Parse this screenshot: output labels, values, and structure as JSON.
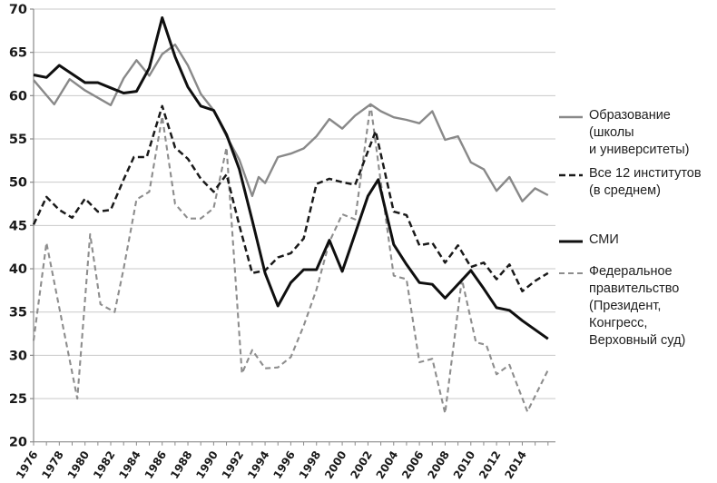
{
  "chart_data": {
    "type": "line",
    "title": "",
    "xlabel": "",
    "ylabel": "",
    "ylim": [
      20,
      70
    ],
    "xlim": [
      1976,
      2016.5
    ],
    "grid": true,
    "legend_position": "right",
    "y_tick_labels": [
      "20",
      "25",
      "30",
      "35",
      "40",
      "45",
      "50",
      "55",
      "60",
      "65",
      "70"
    ],
    "y_tick_values": [
      20,
      25,
      30,
      35,
      40,
      45,
      50,
      55,
      60,
      65,
      70
    ],
    "x_tick_labels": [
      "1976",
      "1978",
      "1980",
      "1982",
      "1984",
      "1986",
      "1988",
      "1990",
      "1992",
      "1994",
      "1996",
      "1998",
      "2000",
      "2002",
      "2004",
      "2006",
      "2008",
      "2010",
      "2012",
      "2014"
    ],
    "x_tick_values": [
      1976,
      1978,
      1980,
      1982,
      1984,
      1986,
      1988,
      1990,
      1992,
      1994,
      1996,
      1998,
      2000,
      2002,
      2004,
      2006,
      2008,
      2010,
      2012,
      2014
    ],
    "series": [
      {
        "name": "Федеральное правительство (Президент, Конгресс, Верховный суд)",
        "legend_lines": [
          "Федеральное",
          "правительство",
          "(Президент, Конгресс,",
          "Верховный суд)"
        ],
        "color": "#8d8d8d",
        "style": "dashed",
        "dash": "6,4",
        "width": 2.1,
        "points": [
          [
            1976,
            31.7
          ],
          [
            1977,
            43.0
          ],
          [
            1978,
            35.5
          ],
          [
            1979.4,
            25.0
          ],
          [
            1980.4,
            44.0
          ],
          [
            1981.2,
            35.9
          ],
          [
            1982.3,
            35.0
          ],
          [
            1983,
            40.0
          ],
          [
            1984,
            48.0
          ],
          [
            1985,
            48.9
          ],
          [
            1986,
            57.6
          ],
          [
            1987,
            47.5
          ],
          [
            1988,
            45.8
          ],
          [
            1989,
            45.8
          ],
          [
            1990,
            47.0
          ],
          [
            1991,
            54.0
          ],
          [
            1992.2,
            27.9
          ],
          [
            1993,
            30.6
          ],
          [
            1994,
            28.5
          ],
          [
            1995,
            28.6
          ],
          [
            1996,
            29.8
          ],
          [
            1997,
            33.4
          ],
          [
            1998,
            37.6
          ],
          [
            1999,
            43.1
          ],
          [
            2000,
            46.3
          ],
          [
            2001,
            45.7
          ],
          [
            2002.2,
            59.0
          ],
          [
            2003,
            50.0
          ],
          [
            2004,
            39.2
          ],
          [
            2005,
            38.8
          ],
          [
            2006,
            29.2
          ],
          [
            2007,
            29.6
          ],
          [
            2008,
            23.3
          ],
          [
            2009.3,
            38.8
          ],
          [
            2010.4,
            31.5
          ],
          [
            2011.2,
            31.2
          ],
          [
            2012,
            27.8
          ],
          [
            2013,
            28.9
          ],
          [
            2014.4,
            23.5
          ],
          [
            2016,
            28.3
          ]
        ]
      },
      {
        "name": "Образование (школы и университеты)",
        "legend_lines": [
          "Образование",
          "(школы",
          "и университеты)"
        ],
        "color": "#898989",
        "style": "solid",
        "dash": "",
        "width": 2.4,
        "points": [
          [
            1976,
            61.8
          ],
          [
            1977.6,
            59.0
          ],
          [
            1978.8,
            61.9
          ],
          [
            1980,
            60.6
          ],
          [
            1982,
            58.9
          ],
          [
            1983,
            62.0
          ],
          [
            1984,
            64.1
          ],
          [
            1985,
            62.3
          ],
          [
            1986,
            64.8
          ],
          [
            1987,
            65.9
          ],
          [
            1988,
            63.5
          ],
          [
            1989,
            60.2
          ],
          [
            1990,
            58.3
          ],
          [
            1991,
            55.3
          ],
          [
            1992,
            52.6
          ],
          [
            1993,
            48.4
          ],
          [
            1993.5,
            50.6
          ],
          [
            1994,
            49.9
          ],
          [
            1995,
            52.9
          ],
          [
            1996,
            53.3
          ],
          [
            1997,
            53.9
          ],
          [
            1998,
            55.3
          ],
          [
            1999,
            57.3
          ],
          [
            2000,
            56.2
          ],
          [
            2001,
            57.7
          ],
          [
            2002.2,
            59.0
          ],
          [
            2003,
            58.2
          ],
          [
            2004,
            57.5
          ],
          [
            2005,
            57.2
          ],
          [
            2006,
            56.8
          ],
          [
            2007,
            58.2
          ],
          [
            2008,
            54.9
          ],
          [
            2009,
            55.3
          ],
          [
            2010,
            52.3
          ],
          [
            2011,
            51.5
          ],
          [
            2012,
            49.0
          ],
          [
            2013,
            50.6
          ],
          [
            2014,
            47.8
          ],
          [
            2015,
            49.3
          ],
          [
            2016,
            48.5
          ]
        ]
      },
      {
        "name": "Все 12 институтов (в среднем)",
        "legend_lines": [
          "Все 12 институтов",
          "(в среднем)"
        ],
        "color": "#1a1a1a",
        "style": "dashed",
        "dash": "7,4",
        "width": 2.5,
        "points": [
          [
            1976,
            45.1
          ],
          [
            1977,
            48.3
          ],
          [
            1978,
            46.8
          ],
          [
            1979,
            45.9
          ],
          [
            1980,
            48.1
          ],
          [
            1981,
            46.6
          ],
          [
            1982,
            46.8
          ],
          [
            1983,
            50.3
          ],
          [
            1983.8,
            52.9
          ],
          [
            1984.8,
            52.9
          ],
          [
            1986,
            58.8
          ],
          [
            1987,
            54.0
          ],
          [
            1988,
            52.7
          ],
          [
            1989,
            50.4
          ],
          [
            1990,
            48.9
          ],
          [
            1991,
            50.9
          ],
          [
            1992,
            45.0
          ],
          [
            1993,
            39.5
          ],
          [
            1994,
            39.8
          ],
          [
            1995,
            41.3
          ],
          [
            1996,
            41.8
          ],
          [
            1997,
            43.5
          ],
          [
            1998,
            49.8
          ],
          [
            1999,
            50.4
          ],
          [
            2000,
            50.0
          ],
          [
            2001,
            49.7
          ],
          [
            2002.6,
            55.9
          ],
          [
            2004,
            46.6
          ],
          [
            2005,
            46.2
          ],
          [
            2006,
            42.7
          ],
          [
            2007,
            43.0
          ],
          [
            2008,
            40.7
          ],
          [
            2009,
            42.7
          ],
          [
            2010,
            40.2
          ],
          [
            2011,
            40.7
          ],
          [
            2012,
            38.8
          ],
          [
            2013,
            40.5
          ],
          [
            2014,
            37.4
          ],
          [
            2015,
            38.6
          ],
          [
            2016,
            39.5
          ]
        ]
      },
      {
        "name": "СМИ",
        "legend_lines": [
          "СМИ"
        ],
        "color": "#0f0f0f",
        "style": "solid",
        "dash": "",
        "width": 3,
        "points": [
          [
            1976,
            62.4
          ],
          [
            1977,
            62.1
          ],
          [
            1978,
            63.5
          ],
          [
            1980,
            61.5
          ],
          [
            1981,
            61.5
          ],
          [
            1982,
            60.9
          ],
          [
            1983,
            60.3
          ],
          [
            1984,
            60.5
          ],
          [
            1985,
            63.2
          ],
          [
            1986,
            69.0
          ],
          [
            1987,
            64.5
          ],
          [
            1988,
            61.0
          ],
          [
            1989,
            58.8
          ],
          [
            1990,
            58.3
          ],
          [
            1991,
            55.5
          ],
          [
            1992,
            51.5
          ],
          [
            1993,
            45.6
          ],
          [
            1994,
            39.5
          ],
          [
            1995,
            35.7
          ],
          [
            1996,
            38.4
          ],
          [
            1997,
            39.9
          ],
          [
            1998,
            39.9
          ],
          [
            1999,
            43.3
          ],
          [
            2000,
            39.7
          ],
          [
            2002,
            48.4
          ],
          [
            2002.8,
            50.3
          ],
          [
            2004,
            42.8
          ],
          [
            2005,
            40.5
          ],
          [
            2006,
            38.4
          ],
          [
            2007,
            38.2
          ],
          [
            2008,
            36.6
          ],
          [
            2010,
            39.8
          ],
          [
            2011,
            37.7
          ],
          [
            2012,
            35.5
          ],
          [
            2013,
            35.2
          ],
          [
            2014,
            34.0
          ],
          [
            2016,
            31.9
          ]
        ]
      }
    ],
    "legend_order": [
      1,
      2,
      3,
      0
    ],
    "colors": {
      "grid": "#c9c9c9",
      "axis": "#8a8a8a",
      "tick_label": "#1a1a1a",
      "background": "#ffffff"
    }
  }
}
